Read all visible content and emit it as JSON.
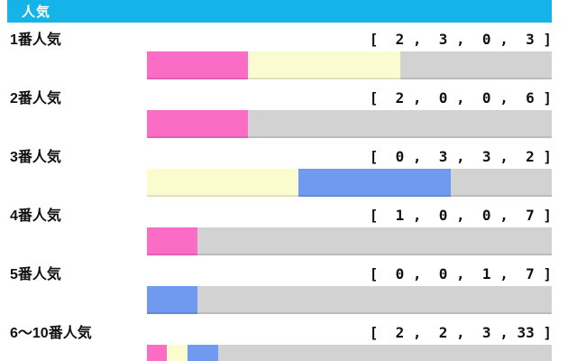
{
  "header": {
    "title": "人気",
    "background_color": "#14b4e8",
    "text_color": "#ffffff"
  },
  "chart_data": {
    "type": "bar",
    "orientation": "horizontal",
    "stacked": true,
    "title": "人気",
    "grid": false,
    "legend": "none",
    "bar_background_note_colors": {
      "segment1": "#fb6cc5",
      "segment2": "#fbfbd0",
      "segment3": "#6f9af0",
      "segment4": "#d2d2d2"
    },
    "segment_colors": [
      "#fb6cc5",
      "#fbfbd0",
      "#6f9af0",
      "#d2d2d2"
    ],
    "rows": [
      {
        "label": "1番人気",
        "values": [
          2,
          3,
          0,
          3
        ],
        "total": 8,
        "display": "[  2 ,  3 ,  0 ,  3 ]"
      },
      {
        "label": "2番人気",
        "values": [
          2,
          0,
          0,
          6
        ],
        "total": 8,
        "display": "[  2 ,  0 ,  0 ,  6 ]"
      },
      {
        "label": "3番人気",
        "values": [
          0,
          3,
          3,
          2
        ],
        "total": 8,
        "display": "[  0 ,  3 ,  3 ,  2 ]"
      },
      {
        "label": "4番人気",
        "values": [
          1,
          0,
          0,
          7
        ],
        "total": 8,
        "display": "[  1 ,  0 ,  0 ,  7 ]"
      },
      {
        "label": "5番人気",
        "values": [
          0,
          0,
          1,
          7
        ],
        "total": 8,
        "display": "[  0 ,  0 ,  1 ,  7 ]"
      },
      {
        "label": "6～10番人気",
        "values": [
          2,
          2,
          3,
          33
        ],
        "total": 40,
        "display": "[  2 ,  2 ,  3 , 33 ]"
      }
    ]
  }
}
